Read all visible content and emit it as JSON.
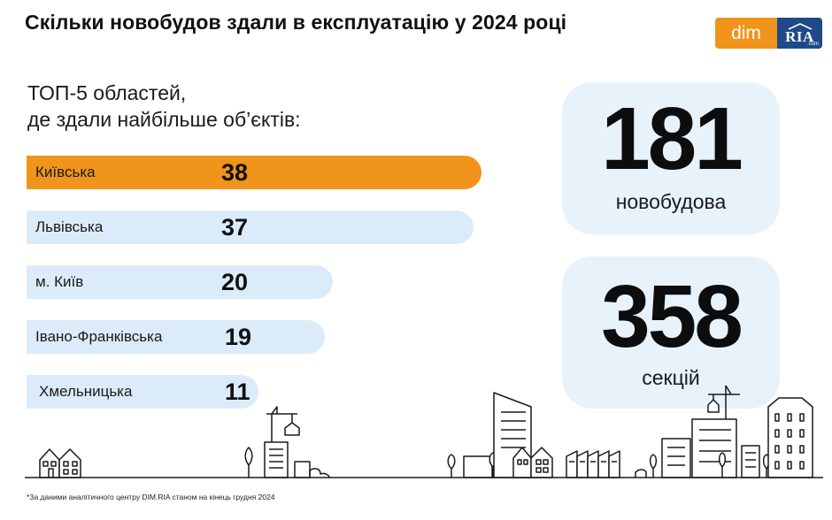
{
  "title": "Скільки новобудов здали в експлуатацію у 2024 році",
  "logo": {
    "dim": "dim",
    "ria": "RIA",
    "ria_sub": ".com"
  },
  "subtitle": [
    "ТОП-5 областей,",
    "де здали найбільше об’єктів:"
  ],
  "colors": {
    "highlight_bar": "#f0941c",
    "bar": "#dcebf9",
    "card": "#e8f2fb",
    "brand_blue": "#1f4a89"
  },
  "chart_data": {
    "type": "bar",
    "orientation": "horizontal",
    "categories": [
      "Київська",
      "Львівська",
      "м. Київ",
      "Івано-Франківська",
      "Хмельницька"
    ],
    "values": [
      38,
      37,
      20,
      19,
      11
    ],
    "value_labels": [
      "38",
      "37",
      "20",
      "19",
      "11"
    ],
    "highlighted_index": 0
  },
  "stats": [
    {
      "value": "181",
      "label": "новобудова"
    },
    {
      "value": "358",
      "label": "секцій"
    }
  ],
  "footnote": "*За даними аналітичного центру DIM.RIA станом на кінець грудня 2024"
}
